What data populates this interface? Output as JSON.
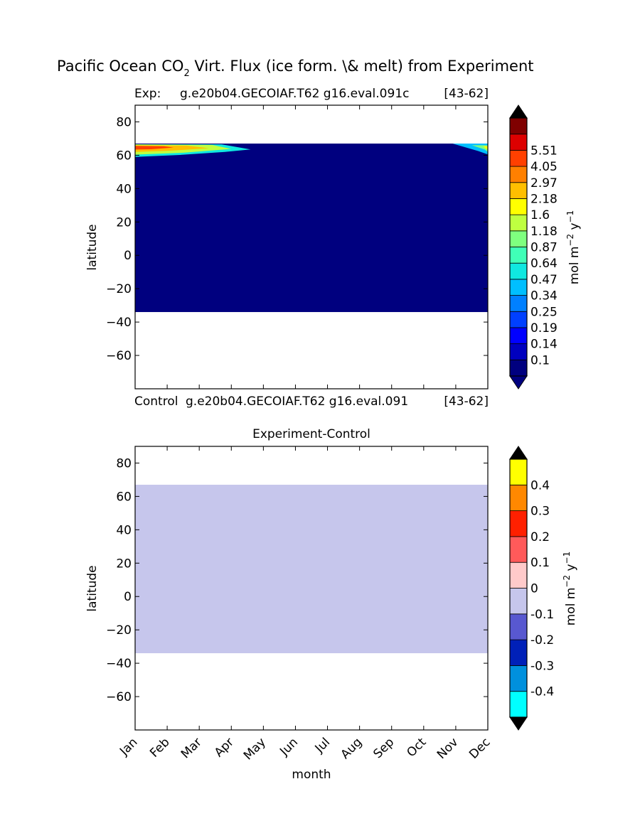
{
  "figure": {
    "title_main": "Pacific Ocean CO",
    "title_sub": "2",
    "title_rest": " Virt. Flux (ice form. \\& melt) from Experiment"
  },
  "chart_data": [
    {
      "type": "heatmap",
      "title_left": "Exp:",
      "title_center": "g.e20b04.GECOIAF.T62 g16.eval.091c",
      "title_right": "[43-62]",
      "bottom_left": "Control",
      "bottom_center": "g.e20b04.GECOIAF.T62 g16.eval.091",
      "bottom_right": "[43-62]",
      "xlabel": "",
      "ylabel": "latitude",
      "xlim": [
        0,
        11
      ],
      "ylim": [
        -80,
        90
      ],
      "yticks": [
        80,
        60,
        40,
        20,
        0,
        -20,
        -40,
        -60
      ],
      "ytick_labels": [
        "80",
        "60",
        "40",
        "20",
        "0",
        "−20",
        "−40",
        "−60"
      ],
      "data_extent": {
        "lat_min": -34,
        "lat_max": 67
      },
      "background_value": "below 0.1",
      "features": [
        {
          "region": "Jan-Mar, 59-66N",
          "values": "up to above 5.51"
        },
        {
          "region": "Nov-Dec, 60-66N",
          "values": "0.3 to 1.6"
        }
      ],
      "colorbar": {
        "label": "mol m⁻² y⁻¹",
        "levels": [
          "0.1",
          "0.14",
          "0.19",
          "0.25",
          "0.34",
          "0.47",
          "0.64",
          "0.87",
          "1.18",
          "1.6",
          "2.18",
          "2.97",
          "4.05",
          "5.51"
        ],
        "colors": [
          "#00007f",
          "#0000bf",
          "#0000ff",
          "#0040ff",
          "#0080ff",
          "#00bfff",
          "#10e8e0",
          "#40ffb7",
          "#7fff7f",
          "#bfff40",
          "#ffff00",
          "#ffbf00",
          "#ff8000",
          "#ff4000",
          "#dd0000",
          "#7f0000"
        ],
        "extend_under": "#00007f",
        "extend_over": "#000000"
      }
    },
    {
      "type": "heatmap",
      "title": "Experiment-Control",
      "xlabel": "month",
      "ylabel": "latitude",
      "xlim": [
        0,
        11
      ],
      "ylim": [
        -80,
        90
      ],
      "yticks": [
        80,
        60,
        40,
        20,
        0,
        -20,
        -40,
        -60
      ],
      "ytick_labels": [
        "80",
        "60",
        "40",
        "20",
        "0",
        "−20",
        "−40",
        "−60"
      ],
      "xticks": [
        "Jan",
        "Feb",
        "Mar",
        "Apr",
        "May",
        "Jun",
        "Jul",
        "Aug",
        "Sep",
        "Oct",
        "Nov",
        "Dec"
      ],
      "data_extent": {
        "lat_min": -34,
        "lat_max": 67
      },
      "background_value": "between -0.1 and 0",
      "colorbar": {
        "label": "mol m⁻² y⁻¹",
        "levels": [
          "-0.4",
          "-0.3",
          "-0.2",
          "-0.1",
          "0",
          "0.1",
          "0.2",
          "0.3",
          "0.4"
        ],
        "colors": [
          "#00ffff",
          "#0090dd",
          "#0020b8",
          "#5858d0",
          "#c6c6ec",
          "#ffcaca",
          "#ff5a5a",
          "#ff2000",
          "#ff8800",
          "#ffff00"
        ],
        "extend_under": "#000000",
        "extend_over": "#000000"
      }
    }
  ]
}
